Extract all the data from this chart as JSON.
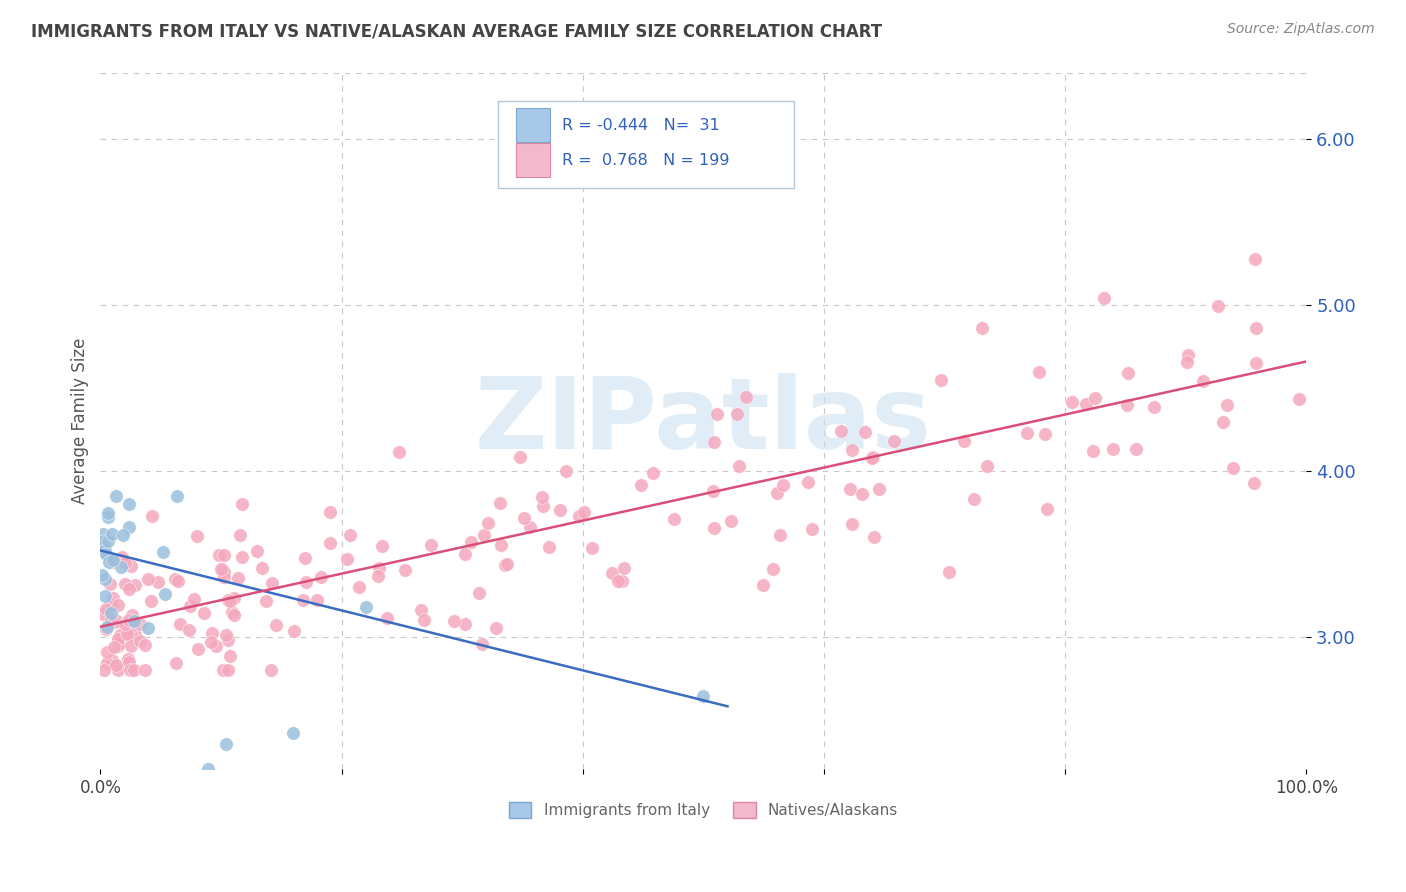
{
  "title": "IMMIGRANTS FROM ITALY VS NATIVE/ALASKAN AVERAGE FAMILY SIZE CORRELATION CHART",
  "source": "Source: ZipAtlas.com",
  "ylabel": "Average Family Size",
  "yticks": [
    3.0,
    4.0,
    5.0,
    6.0
  ],
  "xlim": [
    0.0,
    1.0
  ],
  "ylim": [
    2.2,
    6.4
  ],
  "legend_italy_R": "-0.444",
  "legend_italy_N": "31",
  "legend_native_R": "0.768",
  "legend_native_N": "199",
  "italy_scatter_color": "#9abfdd",
  "native_scatter_color": "#f4a8be",
  "italy_line_color": "#3a6dbf",
  "native_line_color": "#d94f7a",
  "legend_italy_patch": "#a8c8e8",
  "legend_native_patch": "#f4b8cc",
  "background_color": "#ffffff",
  "grid_color": "#c8c8c8",
  "text_color": "#3060c0",
  "title_color": "#444444",
  "source_color": "#888888",
  "ylabel_color": "#555555",
  "watermark_color": "#c8dff0",
  "italy_line_x0": 0.0,
  "italy_line_x1": 0.52,
  "italy_line_y0": 3.52,
  "italy_line_y1": 2.58,
  "native_line_x0": 0.0,
  "native_line_x1": 1.0,
  "native_line_y0": 3.06,
  "native_line_y1": 4.66
}
